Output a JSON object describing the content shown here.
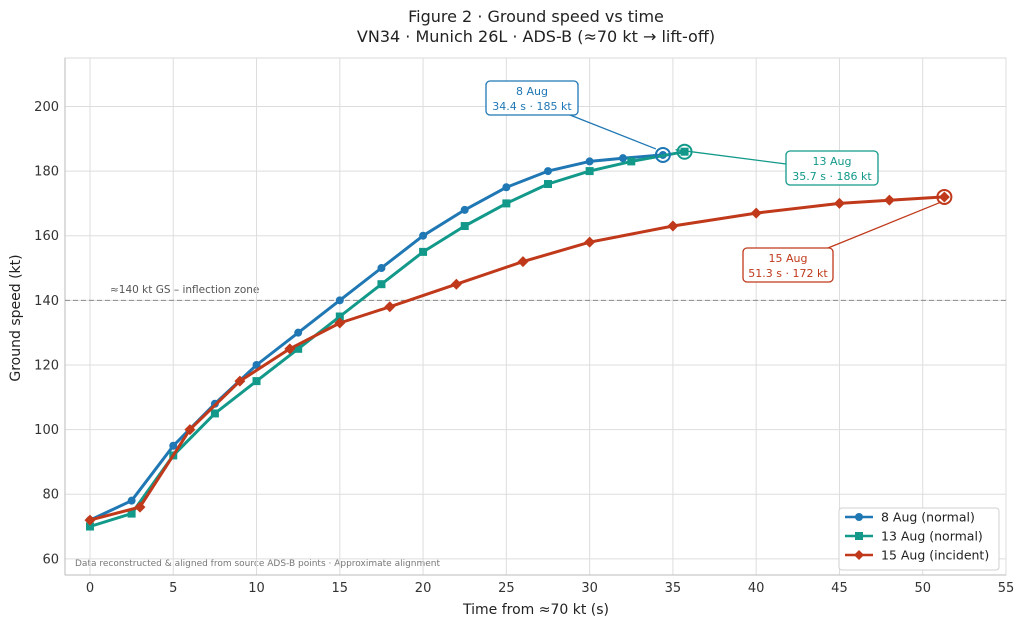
{
  "chart_data": {
    "type": "line",
    "title": "Figure 2  ·  Ground speed vs time",
    "subtitle": "VN34 · Munich 26L · ADS-B (≈70 kt → lift-off)",
    "xlabel": "Time from ≈70 kt (s)",
    "ylabel": "Ground speed (kt)",
    "xlim": [
      -1.5,
      55
    ],
    "ylim": [
      55,
      215
    ],
    "xticks": [
      0,
      5,
      10,
      15,
      20,
      25,
      30,
      35,
      40,
      45,
      50,
      55
    ],
    "yticks": [
      60,
      80,
      100,
      120,
      140,
      160,
      180,
      200
    ],
    "grid": true,
    "legend_position": "bottom-right",
    "reference_line": {
      "y": 140,
      "label": "≈140 kt GS – inflection zone"
    },
    "footnote": "Data reconstructed & aligned from source ADS-B points · Approximate alignment",
    "series": [
      {
        "name": "8 Aug (normal)",
        "color": "#1f77b4",
        "marker": "circle",
        "x": [
          0,
          2.5,
          5,
          7.5,
          10,
          12.5,
          15,
          17.5,
          20,
          22.5,
          25,
          27.5,
          30,
          32,
          34.4
        ],
        "y": [
          72,
          78,
          95,
          108,
          120,
          130,
          140,
          150,
          160,
          168,
          175,
          180,
          183,
          184,
          185
        ],
        "endpoint": {
          "x": 34.4,
          "y": 185,
          "label_line1": "8 Aug",
          "label_line2": "34.4 s · 185 kt"
        }
      },
      {
        "name": "13 Aug (normal)",
        "color": "#12998a",
        "marker": "square",
        "x": [
          0,
          2.5,
          5,
          7.5,
          10,
          12.5,
          15,
          17.5,
          20,
          22.5,
          25,
          27.5,
          30,
          32.5,
          35.7
        ],
        "y": [
          70,
          74,
          92,
          105,
          115,
          125,
          135,
          145,
          155,
          163,
          170,
          176,
          180,
          183,
          186
        ],
        "endpoint": {
          "x": 35.7,
          "y": 186,
          "label_line1": "13 Aug",
          "label_line2": "35.7 s · 186 kt"
        }
      },
      {
        "name": "15 Aug (incident)",
        "color": "#c0391b",
        "marker": "diamond",
        "x": [
          0,
          3,
          6,
          9,
          12,
          15,
          18,
          22,
          26,
          30,
          35,
          40,
          45,
          48,
          51.3
        ],
        "y": [
          72,
          76,
          100,
          115,
          125,
          133,
          138,
          145,
          152,
          158,
          163,
          167,
          170,
          171,
          172
        ],
        "endpoint": {
          "x": 51.3,
          "y": 172,
          "label_line1": "15 Aug",
          "label_line2": "51.3 s · 172 kt"
        }
      }
    ]
  }
}
